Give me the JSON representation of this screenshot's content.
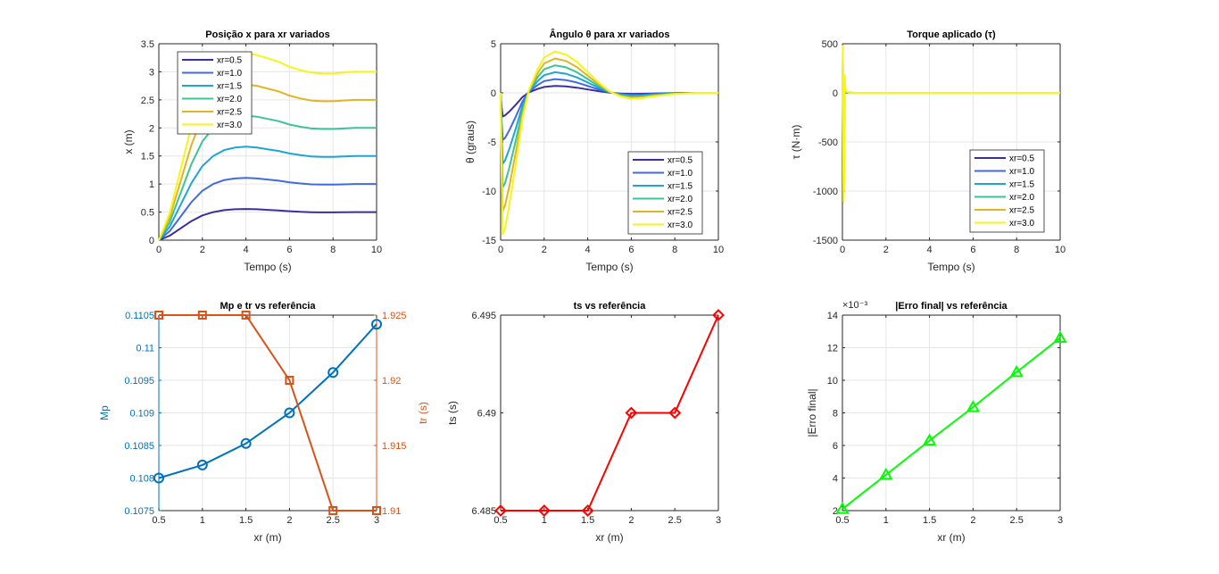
{
  "colors": {
    "xr": [
      "#3a2fa0",
      "#4169e1",
      "#1ea5d6",
      "#3cc493",
      "#e0b424",
      "#f5f518"
    ],
    "mp": "#0072bd",
    "tr": "#d95319",
    "ts": "#ff0000",
    "err": "#00ff00"
  },
  "chart_data": [
    {
      "type": "line",
      "title": "Posição x para xr variados",
      "xlabel": "Tempo (s)",
      "ylabel": "x (m)",
      "xlim": [
        0,
        10
      ],
      "ylim": [
        0,
        3.5
      ],
      "xticks": [
        0,
        2,
        4,
        6,
        8,
        10
      ],
      "yticks": [
        0,
        0.5,
        1,
        1.5,
        2,
        2.5,
        3,
        3.5
      ],
      "grid": true,
      "legend_position": "top-left",
      "response": {
        "t": [
          0,
          0.5,
          1,
          1.5,
          2,
          2.5,
          3,
          3.5,
          4,
          4.5,
          5,
          5.5,
          6,
          6.5,
          7,
          7.5,
          8,
          8.5,
          9,
          9.5,
          10
        ],
        "per_unit": [
          0,
          0.16,
          0.42,
          0.68,
          0.88,
          1.0,
          1.07,
          1.1,
          1.11,
          1.1,
          1.08,
          1.06,
          1.03,
          1.01,
          0.995,
          0.99,
          0.99,
          0.995,
          1.0,
          1.0,
          1.0
        ]
      },
      "series": [
        {
          "name": "xr=0.5",
          "scale": 0.5
        },
        {
          "name": "xr=1.0",
          "scale": 1.0
        },
        {
          "name": "xr=1.5",
          "scale": 1.5
        },
        {
          "name": "xr=2.0",
          "scale": 2.0
        },
        {
          "name": "xr=2.5",
          "scale": 2.5
        },
        {
          "name": "xr=3.0",
          "scale": 3.0
        }
      ]
    },
    {
      "type": "line",
      "title": "Ângulo θ para xr variados",
      "xlabel": "Tempo (s)",
      "ylabel": "θ (graus)",
      "xlim": [
        0,
        10
      ],
      "ylim": [
        -15,
        5
      ],
      "xticks": [
        0,
        2,
        4,
        6,
        8,
        10
      ],
      "yticks": [
        -15,
        -10,
        -5,
        0,
        5
      ],
      "grid": true,
      "legend_position": "bottom-right",
      "response": {
        "t": [
          0,
          0.05,
          0.1,
          0.2,
          0.4,
          0.7,
          1.0,
          1.3,
          1.7,
          2.0,
          2.5,
          3.0,
          3.5,
          4.0,
          4.5,
          5.0,
          5.5,
          6.0,
          6.5,
          7.0,
          8.0,
          9.0,
          10.0
        ],
        "per_unit": [
          0,
          -3.0,
          -4.8,
          -4.6,
          -3.8,
          -2.4,
          -0.9,
          0.1,
          0.8,
          1.2,
          1.4,
          1.3,
          1.05,
          0.7,
          0.35,
          0.05,
          -0.12,
          -0.2,
          -0.18,
          -0.12,
          -0.04,
          0,
          0
        ]
      },
      "series": [
        {
          "name": "xr=0.5",
          "scale": 0.5
        },
        {
          "name": "xr=1.0",
          "scale": 1.0
        },
        {
          "name": "xr=1.5",
          "scale": 1.5
        },
        {
          "name": "xr=2.0",
          "scale": 2.0
        },
        {
          "name": "xr=2.5",
          "scale": 2.5
        },
        {
          "name": "xr=3.0",
          "scale": 3.0
        }
      ]
    },
    {
      "type": "line",
      "title": "Torque aplicado (τ)",
      "xlabel": "Tempo (s)",
      "ylabel": "τ (N·m)",
      "xlim": [
        0,
        10
      ],
      "ylim": [
        -1500,
        500
      ],
      "xticks": [
        0,
        2,
        4,
        6,
        8,
        10
      ],
      "yticks": [
        -1500,
        -1000,
        -500,
        0,
        500
      ],
      "grid": true,
      "legend_position": "bottom-right",
      "response": {
        "t": [
          0,
          0.02,
          0.05,
          0.08,
          0.1,
          0.13,
          0.16,
          0.2,
          0.3,
          0.5,
          1.0,
          2.0,
          4.0,
          6.0,
          8.0,
          10.0
        ],
        "per_unit": [
          0,
          160,
          -370,
          -300,
          60,
          20,
          6,
          3,
          1,
          0,
          0,
          0,
          0,
          0,
          0,
          0
        ]
      },
      "series": [
        {
          "name": "xr=0.5",
          "scale": 0.5
        },
        {
          "name": "xr=1.0",
          "scale": 1.0
        },
        {
          "name": "xr=1.5",
          "scale": 1.5
        },
        {
          "name": "xr=2.0",
          "scale": 2.0
        },
        {
          "name": "xr=2.5",
          "scale": 2.5
        },
        {
          "name": "xr=3.0",
          "scale": 3.0
        }
      ]
    },
    {
      "type": "line",
      "title": "Mp e tr vs referência",
      "xlabel": "xr (m)",
      "ylabel": "Mp",
      "ylabel_right": "tr (s)",
      "x": [
        0.5,
        1,
        1.5,
        2,
        2.5,
        3
      ],
      "xlim": [
        0.5,
        3
      ],
      "ylim": [
        0.1075,
        0.1105
      ],
      "ylim_right": [
        1.91,
        1.925
      ],
      "xticks": [
        "0.5",
        "1",
        "1.5",
        "2",
        "2.5",
        "3"
      ],
      "yticks": [
        "0.1075",
        "0.108",
        "0.1085",
        "0.109",
        "0.1095",
        "0.11",
        "0.1105"
      ],
      "yticks_right": [
        "1.91",
        "1.915",
        "1.92",
        "1.925"
      ],
      "grid": true,
      "series": [
        {
          "axis": "left",
          "marker": "circle",
          "values": [
            0.108,
            0.1082,
            0.10853,
            0.109,
            0.10962,
            0.11036
          ]
        },
        {
          "axis": "right",
          "marker": "square",
          "values": [
            1.925,
            1.925,
            1.925,
            1.92,
            1.91,
            1.91
          ]
        }
      ]
    },
    {
      "type": "line",
      "title": "ts vs referência",
      "xlabel": "xr (m)",
      "ylabel": "ts (s)",
      "x": [
        0.5,
        1,
        1.5,
        2,
        2.5,
        3
      ],
      "xlim": [
        0.5,
        3
      ],
      "ylim": [
        6.485,
        6.495
      ],
      "xticks": [
        "0.5",
        "1",
        "1.5",
        "2",
        "2.5",
        "3"
      ],
      "yticks": [
        "6.485",
        "6.49",
        "6.495"
      ],
      "grid": false,
      "series": [
        {
          "marker": "diamond",
          "values": [
            6.485,
            6.485,
            6.485,
            6.49,
            6.49,
            6.495
          ]
        }
      ]
    },
    {
      "type": "line",
      "title": "|Erro final| vs referência",
      "xlabel": "xr (m)",
      "ylabel": "|Erro final|",
      "exponent": "×10⁻³",
      "x": [
        0.5,
        1,
        1.5,
        2,
        2.5,
        3
      ],
      "xlim": [
        0.5,
        3
      ],
      "ylim": [
        2,
        14
      ],
      "xticks": [
        "0.5",
        "1",
        "1.5",
        "2",
        "2.5",
        "3"
      ],
      "yticks": [
        "2",
        "4",
        "6",
        "8",
        "10",
        "12",
        "14"
      ],
      "grid": true,
      "series": [
        {
          "marker": "triangle",
          "values": [
            2.1,
            4.2,
            6.3,
            8.35,
            10.5,
            12.6
          ]
        }
      ]
    }
  ]
}
